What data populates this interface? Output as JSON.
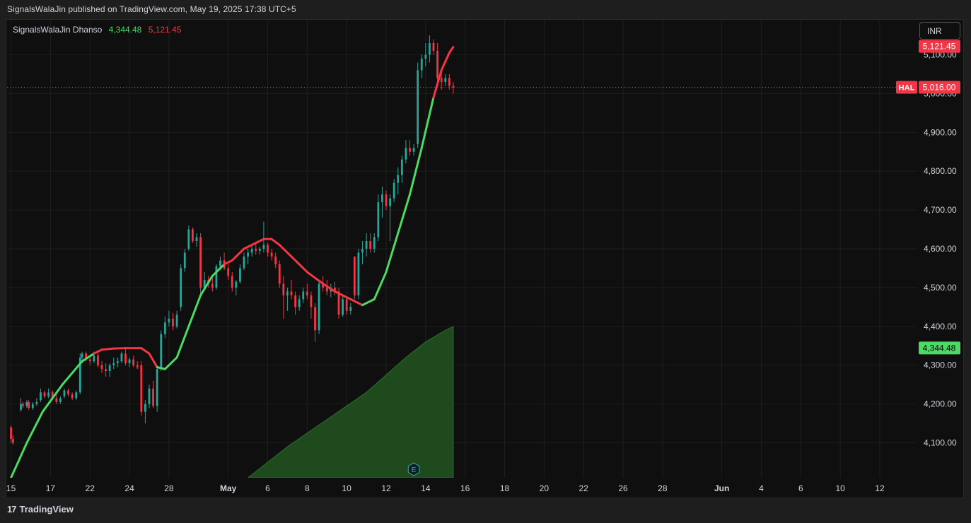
{
  "header": {
    "published_text": "SignalsWalaJin published on TradingView.com, May 19, 2025 17:38 UTC+5"
  },
  "legend": {
    "indicator_name": "SignalsWalaJin Dhanso",
    "value_1": "4,344.48",
    "value_2": "5,121.45"
  },
  "currency": "INR",
  "footer": {
    "brand": "TradingView",
    "logo_text": "17"
  },
  "price_labels": {
    "upper_band": "5,121.45",
    "last_price": "5,016.00",
    "symbol": "HAL",
    "lower_band": "4,344.48"
  },
  "earnings_marker": "E",
  "colors": {
    "up": "#26a69a",
    "down": "#f23645",
    "bull_line": "#4cd964",
    "bear_line": "#f23645",
    "area_fill": "#1e4a1e",
    "area_stroke": "#2f6f2f",
    "grid": "#1f1f1f",
    "axis_text": "#d1d4dc"
  },
  "chart_data": {
    "type": "candlestick",
    "y_axis": {
      "ticks": [
        4100,
        4200,
        4300,
        4400,
        4500,
        4600,
        4700,
        4800,
        4900,
        5000,
        5100
      ],
      "tick_labels": [
        "4,100.00",
        "4,200.00",
        "4,300.00",
        "4,400.00",
        "4,500.00",
        "4,600.00",
        "4,700.00",
        "4,800.00",
        "4,900.00",
        "5,000.00",
        "5,100.00"
      ],
      "range": [
        4010,
        5190
      ]
    },
    "x_axis": {
      "labels": [
        "15",
        "17",
        "22",
        "24",
        "28",
        "May",
        "6",
        "8",
        "10",
        "12",
        "14",
        "16",
        "18",
        "20",
        "22",
        "26",
        "28",
        "Jun",
        "4",
        "6",
        "10",
        "12"
      ],
      "label_index": [
        0,
        2,
        4,
        6,
        8,
        11,
        13,
        15,
        17,
        19,
        21,
        23,
        25,
        27,
        29,
        31,
        33,
        36,
        38,
        40,
        42,
        44
      ],
      "bold_labels": [
        "May",
        "Jun"
      ],
      "index_range": [
        -0.2,
        45.9
      ]
    },
    "candle_bar_fraction": 0.1,
    "candles": [
      [
        0.0,
        4140,
        4145,
        4100,
        4110
      ],
      [
        0.1,
        4110,
        4120,
        4095,
        4100
      ],
      [
        0.5,
        4185,
        4215,
        4180,
        4200
      ],
      [
        0.6,
        4200,
        4205,
        4190,
        4195
      ],
      [
        0.8,
        4195,
        4210,
        4190,
        4205
      ],
      [
        0.9,
        4205,
        4210,
        4185,
        4190
      ],
      [
        1.1,
        4190,
        4205,
        4185,
        4200
      ],
      [
        1.3,
        4200,
        4215,
        4195,
        4205
      ],
      [
        1.5,
        4210,
        4240,
        4205,
        4230
      ],
      [
        1.7,
        4230,
        4235,
        4215,
        4220
      ],
      [
        1.9,
        4220,
        4240,
        4215,
        4230
      ],
      [
        2.1,
        4230,
        4235,
        4210,
        4215
      ],
      [
        2.3,
        4215,
        4225,
        4200,
        4205
      ],
      [
        2.5,
        4205,
        4220,
        4200,
        4215
      ],
      [
        2.7,
        4220,
        4240,
        4215,
        4235
      ],
      [
        2.9,
        4235,
        4240,
        4220,
        4225
      ],
      [
        3.1,
        4225,
        4230,
        4210,
        4215
      ],
      [
        3.3,
        4215,
        4235,
        4210,
        4230
      ],
      [
        3.5,
        4230,
        4330,
        4225,
        4320
      ],
      [
        3.6,
        4320,
        4335,
        4305,
        4330
      ],
      [
        3.8,
        4330,
        4335,
        4310,
        4315
      ],
      [
        4.0,
        4315,
        4325,
        4300,
        4310
      ],
      [
        4.2,
        4310,
        4335,
        4305,
        4325
      ],
      [
        4.4,
        4325,
        4330,
        4295,
        4300
      ],
      [
        4.6,
        4300,
        4310,
        4280,
        4290
      ],
      [
        4.8,
        4290,
        4305,
        4270,
        4285
      ],
      [
        5.0,
        4285,
        4305,
        4270,
        4300
      ],
      [
        5.2,
        4300,
        4320,
        4290,
        4305
      ],
      [
        5.4,
        4305,
        4320,
        4295,
        4310
      ],
      [
        5.6,
        4310,
        4335,
        4305,
        4330
      ],
      [
        5.8,
        4330,
        4345,
        4300,
        4305
      ],
      [
        6.0,
        4305,
        4320,
        4295,
        4315
      ],
      [
        6.2,
        4315,
        4325,
        4295,
        4300
      ],
      [
        6.4,
        4300,
        4310,
        4290,
        4295
      ],
      [
        6.6,
        4300,
        4310,
        4170,
        4180
      ],
      [
        6.8,
        4180,
        4210,
        4150,
        4200
      ],
      [
        7.0,
        4200,
        4250,
        4190,
        4240
      ],
      [
        7.2,
        4240,
        4260,
        4190,
        4195
      ],
      [
        7.4,
        4195,
        4300,
        4180,
        4290
      ],
      [
        7.6,
        4290,
        4390,
        4285,
        4380
      ],
      [
        7.8,
        4380,
        4425,
        4370,
        4410
      ],
      [
        8.0,
        4410,
        4440,
        4400,
        4420
      ],
      [
        8.2,
        4420,
        4435,
        4390,
        4400
      ],
      [
        8.4,
        4400,
        4440,
        4395,
        4430
      ],
      [
        8.6,
        4450,
        4560,
        4440,
        4550
      ],
      [
        8.8,
        4550,
        4600,
        4540,
        4590
      ],
      [
        9.0,
        4600,
        4660,
        4595,
        4650
      ],
      [
        9.2,
        4650,
        4655,
        4615,
        4620
      ],
      [
        9.4,
        4620,
        4640,
        4605,
        4630
      ],
      [
        9.6,
        4630,
        4640,
        4480,
        4500
      ],
      [
        9.8,
        4500,
        4540,
        4495,
        4520
      ],
      [
        10.0,
        4520,
        4530,
        4500,
        4510
      ],
      [
        10.2,
        4510,
        4525,
        4490,
        4500
      ],
      [
        10.4,
        4500,
        4560,
        4495,
        4555
      ],
      [
        10.6,
        4555,
        4580,
        4545,
        4570
      ],
      [
        10.8,
        4570,
        4590,
        4545,
        4550
      ],
      [
        11.0,
        4550,
        4560,
        4520,
        4530
      ],
      [
        11.2,
        4530,
        4540,
        4490,
        4500
      ],
      [
        11.4,
        4500,
        4520,
        4480,
        4515
      ],
      [
        11.6,
        4515,
        4560,
        4510,
        4550
      ],
      [
        11.8,
        4550,
        4590,
        4545,
        4580
      ],
      [
        12.0,
        4580,
        4600,
        4560,
        4590
      ],
      [
        12.2,
        4590,
        4610,
        4580,
        4600
      ],
      [
        12.4,
        4600,
        4615,
        4585,
        4595
      ],
      [
        12.6,
        4595,
        4605,
        4585,
        4600
      ],
      [
        12.8,
        4600,
        4670,
        4590,
        4610
      ],
      [
        13.0,
        4610,
        4615,
        4580,
        4590
      ],
      [
        13.2,
        4590,
        4600,
        4570,
        4580
      ],
      [
        13.4,
        4580,
        4590,
        4550,
        4560
      ],
      [
        13.6,
        4560,
        4570,
        4500,
        4510
      ],
      [
        13.8,
        4510,
        4530,
        4420,
        4480
      ],
      [
        14.0,
        4480,
        4500,
        4440,
        4490
      ],
      [
        14.2,
        4490,
        4520,
        4470,
        4480
      ],
      [
        14.4,
        4480,
        4490,
        4430,
        4450
      ],
      [
        14.6,
        4450,
        4480,
        4440,
        4470
      ],
      [
        14.8,
        4470,
        4500,
        4460,
        4490
      ],
      [
        15.0,
        4490,
        4510,
        4470,
        4480
      ],
      [
        15.2,
        4480,
        4490,
        4420,
        4450
      ],
      [
        15.4,
        4450,
        4460,
        4360,
        4390
      ],
      [
        15.6,
        4390,
        4520,
        4380,
        4510
      ],
      [
        15.8,
        4510,
        4530,
        4490,
        4500
      ],
      [
        16.0,
        4500,
        4520,
        4480,
        4490
      ],
      [
        16.2,
        4490,
        4510,
        4475,
        4500
      ],
      [
        16.4,
        4500,
        4515,
        4480,
        4490
      ],
      [
        16.6,
        4490,
        4500,
        4420,
        4430
      ],
      [
        16.8,
        4430,
        4480,
        4425,
        4470
      ],
      [
        17.0,
        4470,
        4475,
        4430,
        4440
      ],
      [
        17.2,
        4440,
        4460,
        4430,
        4450
      ],
      [
        17.4,
        4580,
        4580,
        4470,
        4480
      ],
      [
        17.6,
        4480,
        4600,
        4470,
        4590
      ],
      [
        17.8,
        4590,
        4620,
        4560,
        4600
      ],
      [
        18.0,
        4600,
        4640,
        4580,
        4620
      ],
      [
        18.2,
        4620,
        4640,
        4590,
        4600
      ],
      [
        18.4,
        4600,
        4640,
        4590,
        4630
      ],
      [
        18.6,
        4630,
        4740,
        4620,
        4720
      ],
      [
        18.8,
        4720,
        4760,
        4680,
        4740
      ],
      [
        19.0,
        4740,
        4750,
        4700,
        4710
      ],
      [
        19.2,
        4710,
        4740,
        4620,
        4730
      ],
      [
        19.4,
        4730,
        4780,
        4720,
        4770
      ],
      [
        19.6,
        4770,
        4810,
        4740,
        4790
      ],
      [
        19.8,
        4790,
        4840,
        4770,
        4830
      ],
      [
        20.0,
        4830,
        4880,
        4820,
        4860
      ],
      [
        20.2,
        4860,
        4880,
        4840,
        4850
      ],
      [
        20.4,
        4850,
        4870,
        4840,
        4860
      ],
      [
        20.6,
        4870,
        5080,
        4860,
        5060
      ],
      [
        20.8,
        5060,
        5100,
        5040,
        5090
      ],
      [
        21.0,
        5090,
        5130,
        5070,
        5100
      ],
      [
        21.2,
        5100,
        5150,
        5080,
        5130
      ],
      [
        21.4,
        5130,
        5140,
        5100,
        5110
      ],
      [
        21.6,
        5110,
        5130,
        5030,
        5040
      ],
      [
        21.8,
        5040,
        5060,
        5010,
        5030
      ],
      [
        22.0,
        5030,
        5050,
        5020,
        5040
      ],
      [
        22.2,
        5040,
        5050,
        5010,
        5020
      ],
      [
        22.4,
        5020,
        5030,
        5000,
        5016
      ]
    ],
    "ma_line": [
      [
        0.0,
        4010,
        "bull"
      ],
      [
        0.8,
        4100,
        "bull"
      ],
      [
        1.6,
        4180,
        "bull"
      ],
      [
        2.6,
        4250,
        "bull"
      ],
      [
        3.6,
        4310,
        "bull"
      ],
      [
        4.2,
        4330,
        "bull"
      ],
      [
        4.6,
        4340,
        "bear"
      ],
      [
        5.2,
        4343,
        "bear"
      ],
      [
        5.8,
        4344,
        "bear"
      ],
      [
        6.6,
        4344,
        "bear"
      ],
      [
        7.0,
        4330,
        "bear"
      ],
      [
        7.4,
        4295,
        "bear"
      ],
      [
        7.8,
        4290,
        "bull"
      ],
      [
        8.4,
        4320,
        "bull"
      ],
      [
        9.0,
        4400,
        "bull"
      ],
      [
        9.6,
        4480,
        "bull"
      ],
      [
        10.2,
        4530,
        "bull"
      ],
      [
        10.8,
        4560,
        "bull"
      ],
      [
        11.2,
        4570,
        "bear"
      ],
      [
        11.8,
        4600,
        "bear"
      ],
      [
        12.4,
        4615,
        "bear"
      ],
      [
        12.8,
        4625,
        "bear"
      ],
      [
        13.2,
        4625,
        "bear"
      ],
      [
        13.6,
        4610,
        "bear"
      ],
      [
        14.2,
        4580,
        "bear"
      ],
      [
        15.0,
        4540,
        "bear"
      ],
      [
        15.8,
        4510,
        "bear"
      ],
      [
        16.4,
        4490,
        "bear"
      ],
      [
        17.2,
        4470,
        "bear"
      ],
      [
        17.8,
        4455,
        "bear"
      ],
      [
        18.4,
        4470,
        "bull"
      ],
      [
        19.0,
        4540,
        "bull"
      ],
      [
        19.6,
        4640,
        "bull"
      ],
      [
        20.2,
        4740,
        "bull"
      ],
      [
        20.8,
        4860,
        "bull"
      ],
      [
        21.4,
        4990,
        "bull"
      ],
      [
        21.8,
        5060,
        "bear"
      ],
      [
        22.2,
        5105,
        "bear"
      ],
      [
        22.4,
        5120,
        "bear"
      ]
    ],
    "volume_area": [
      [
        12.0,
        4010
      ],
      [
        13.0,
        4050
      ],
      [
        14.0,
        4090
      ],
      [
        15.0,
        4125
      ],
      [
        16.0,
        4160
      ],
      [
        17.0,
        4195
      ],
      [
        18.0,
        4230
      ],
      [
        19.0,
        4275
      ],
      [
        20.0,
        4320
      ],
      [
        21.0,
        4360
      ],
      [
        22.0,
        4390
      ],
      [
        22.4,
        4400
      ]
    ],
    "earnings_index": 20.4,
    "last_price": 5016,
    "upper_band_value": 5121.45,
    "lower_band_value": 4344.48
  }
}
